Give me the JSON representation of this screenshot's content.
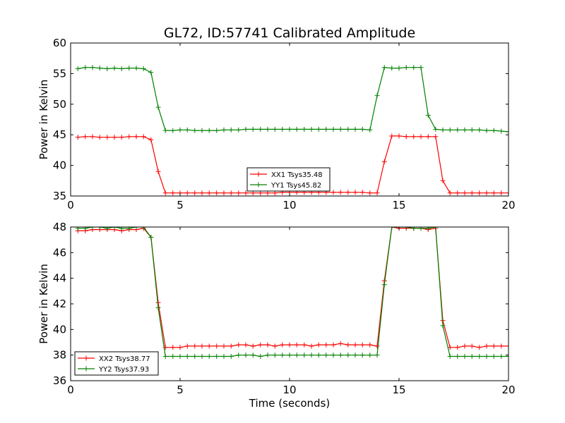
{
  "chart_data": [
    {
      "type": "line",
      "title": "GL72, ID:57741 Calibrated Amplitude",
      "xlabel": "",
      "ylabel": "Power in Kelvin",
      "xlim": [
        0,
        20
      ],
      "ylim": [
        35,
        60
      ],
      "xticks": [
        "0",
        "5",
        "10",
        "15",
        "20"
      ],
      "yticks": [
        "35",
        "40",
        "45",
        "50",
        "55",
        "60"
      ],
      "grid": false,
      "legend_position": "lower-center",
      "x": [
        0.33,
        0.67,
        1.0,
        1.33,
        1.67,
        2.0,
        2.33,
        2.67,
        3.0,
        3.33,
        3.67,
        4.0,
        4.33,
        4.67,
        5.0,
        5.33,
        5.67,
        6.0,
        6.33,
        6.67,
        7.0,
        7.33,
        7.67,
        8.0,
        8.33,
        8.67,
        9.0,
        9.33,
        9.67,
        10.0,
        10.33,
        10.67,
        11.0,
        11.33,
        11.67,
        12.0,
        12.33,
        12.67,
        13.0,
        13.33,
        13.67,
        14.0,
        14.33,
        14.67,
        15.0,
        15.33,
        15.67,
        16.0,
        16.33,
        16.67,
        17.0,
        17.33,
        17.67,
        18.0,
        18.33,
        18.67,
        19.0,
        19.33,
        19.67,
        20.0
      ],
      "series": [
        {
          "name": "XX1 Tsys35.48",
          "color": "#ff0000",
          "values": [
            44.6,
            44.7,
            44.7,
            44.6,
            44.6,
            44.6,
            44.6,
            44.7,
            44.7,
            44.7,
            44.2,
            39.0,
            35.5,
            35.5,
            35.5,
            35.5,
            35.5,
            35.5,
            35.5,
            35.5,
            35.5,
            35.5,
            35.5,
            35.5,
            35.5,
            35.5,
            35.5,
            35.5,
            35.6,
            35.6,
            35.6,
            35.6,
            35.6,
            35.6,
            35.6,
            35.6,
            35.6,
            35.6,
            35.6,
            35.6,
            35.5,
            35.5,
            40.6,
            44.8,
            44.8,
            44.7,
            44.7,
            44.7,
            44.7,
            44.7,
            37.5,
            35.5,
            35.5,
            35.5,
            35.5,
            35.5,
            35.5,
            35.5,
            35.5,
            35.5
          ]
        },
        {
          "name": "YY1 Tsys45.82",
          "color": "#008000",
          "values": [
            55.8,
            56.0,
            56.0,
            55.9,
            55.8,
            55.9,
            55.8,
            55.9,
            55.9,
            55.8,
            55.2,
            49.5,
            45.7,
            45.7,
            45.8,
            45.8,
            45.7,
            45.7,
            45.7,
            45.7,
            45.8,
            45.8,
            45.8,
            45.9,
            45.9,
            45.9,
            45.9,
            45.9,
            45.9,
            45.9,
            45.9,
            45.9,
            45.9,
            45.9,
            45.9,
            45.9,
            45.9,
            45.9,
            45.9,
            45.9,
            45.8,
            51.4,
            56.0,
            55.9,
            55.9,
            56.0,
            56.0,
            56.0,
            48.2,
            45.9,
            45.8,
            45.8,
            45.8,
            45.8,
            45.8,
            45.8,
            45.7,
            45.7,
            45.6,
            45.5
          ]
        }
      ]
    },
    {
      "type": "line",
      "title": "",
      "xlabel": "Time (seconds)",
      "ylabel": "Power in Kelvin",
      "xlim": [
        0,
        20
      ],
      "ylim": [
        36,
        48
      ],
      "xticks": [
        "0",
        "5",
        "10",
        "15",
        "20"
      ],
      "yticks": [
        "36",
        "38",
        "40",
        "42",
        "44",
        "46",
        "48"
      ],
      "grid": false,
      "legend_position": "lower-left",
      "x": [
        0.33,
        0.67,
        1.0,
        1.33,
        1.67,
        2.0,
        2.33,
        2.67,
        3.0,
        3.33,
        3.67,
        4.0,
        4.33,
        4.67,
        5.0,
        5.33,
        5.67,
        6.0,
        6.33,
        6.67,
        7.0,
        7.33,
        7.67,
        8.0,
        8.33,
        8.67,
        9.0,
        9.33,
        9.67,
        10.0,
        10.33,
        10.67,
        11.0,
        11.33,
        11.67,
        12.0,
        12.33,
        12.67,
        13.0,
        13.33,
        13.67,
        14.0,
        14.33,
        14.67,
        15.0,
        15.33,
        15.67,
        16.0,
        16.33,
        16.67,
        17.0,
        17.33,
        17.67,
        18.0,
        18.33,
        18.67,
        19.0,
        19.33,
        19.67,
        20.0
      ],
      "series": [
        {
          "name": "XX2 Tsys38.77",
          "color": "#ff0000",
          "values": [
            47.7,
            47.7,
            47.8,
            47.8,
            47.8,
            47.8,
            47.7,
            47.8,
            47.8,
            47.9,
            47.2,
            42.1,
            38.6,
            38.6,
            38.6,
            38.7,
            38.7,
            38.7,
            38.7,
            38.7,
            38.7,
            38.7,
            38.8,
            38.8,
            38.7,
            38.8,
            38.8,
            38.7,
            38.8,
            38.8,
            38.8,
            38.8,
            38.7,
            38.8,
            38.8,
            38.8,
            38.9,
            38.8,
            38.8,
            38.8,
            38.8,
            38.7,
            43.8,
            48.0,
            47.9,
            47.9,
            47.9,
            47.9,
            47.8,
            47.9,
            40.7,
            38.6,
            38.6,
            38.7,
            38.7,
            38.6,
            38.7,
            38.7,
            38.7,
            38.7
          ]
        },
        {
          "name": "YY2 Tsys37.93",
          "color": "#008000",
          "values": [
            47.9,
            47.9,
            48.0,
            48.0,
            47.9,
            48.0,
            47.9,
            47.9,
            48.0,
            48.0,
            47.2,
            41.7,
            37.9,
            37.9,
            37.9,
            37.9,
            37.9,
            37.9,
            37.9,
            37.9,
            37.9,
            37.9,
            38.0,
            38.0,
            38.0,
            37.9,
            38.0,
            38.0,
            38.0,
            38.0,
            38.0,
            38.0,
            38.0,
            38.0,
            38.0,
            38.0,
            38.0,
            38.0,
            38.0,
            38.0,
            38.0,
            38.0,
            43.5,
            48.0,
            48.0,
            48.0,
            47.9,
            47.9,
            47.9,
            48.0,
            40.3,
            37.9,
            37.9,
            37.9,
            37.9,
            37.9,
            37.9,
            37.9,
            37.9,
            37.9
          ]
        }
      ]
    }
  ]
}
